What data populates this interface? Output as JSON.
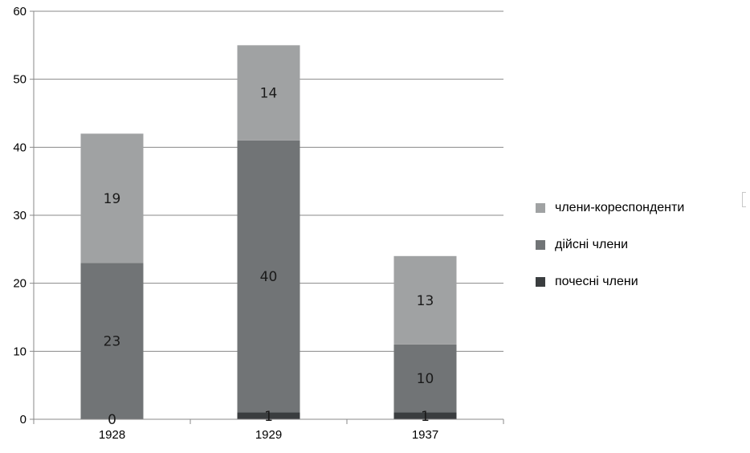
{
  "chart_data": {
    "type": "bar",
    "stacked": true,
    "categories": [
      "1928",
      "1929",
      "1937"
    ],
    "series": [
      {
        "name": "почесні члени",
        "values": [
          0,
          1,
          1
        ],
        "color": "#3a3d3f"
      },
      {
        "name": "дійсні члени",
        "values": [
          23,
          40,
          10
        ],
        "color": "#717476"
      },
      {
        "name": "члени-кореспонденти",
        "values": [
          19,
          14,
          13
        ],
        "color": "#a0a2a3"
      }
    ],
    "ylim": [
      0,
      60
    ],
    "yticks": [
      "0",
      "10",
      "20",
      "30",
      "40",
      "50",
      "60"
    ],
    "grid": true,
    "legend_position": "right",
    "legend_order": [
      "члени-кореспонденти",
      "дійсні члени",
      "почесні члени"
    ],
    "title": "",
    "xlabel": "",
    "ylabel": ""
  }
}
